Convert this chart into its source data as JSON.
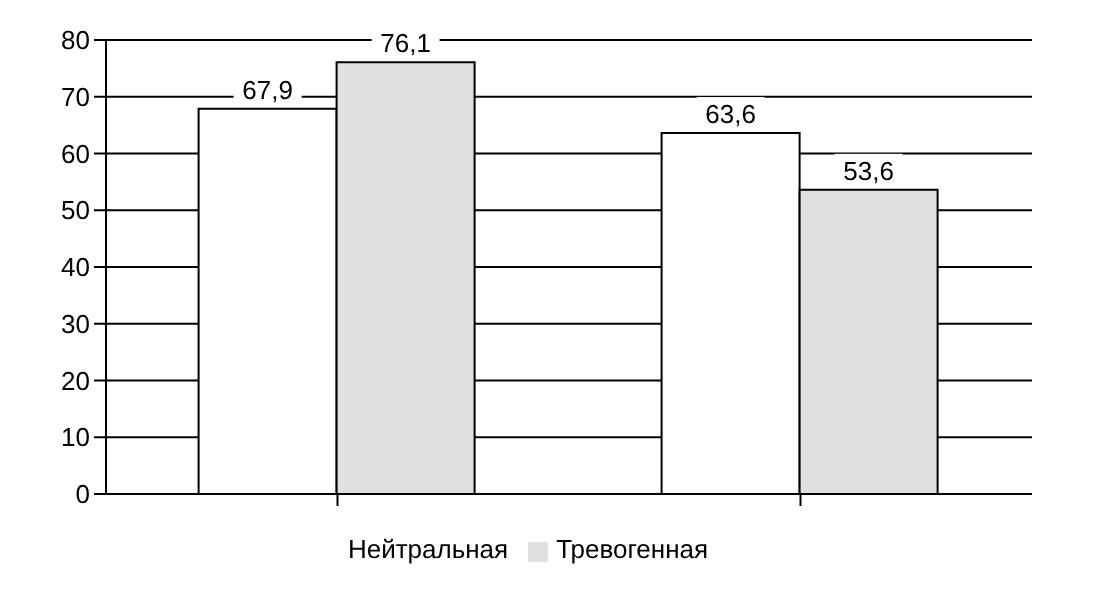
{
  "chart_data": {
    "type": "bar",
    "categories": [
      null,
      null
    ],
    "series": [
      {
        "name": "Нейтральная",
        "color": "#ffffff",
        "values": [
          67.9,
          63.6
        ],
        "value_labels": [
          "67,9",
          "63,6"
        ]
      },
      {
        "name": "Тревогенная",
        "color": "#e0e0e0",
        "values": [
          76.1,
          53.6
        ],
        "value_labels": [
          "76,1",
          "53,6"
        ]
      }
    ],
    "ylim": [
      0,
      80
    ],
    "yticks": [
      0,
      10,
      20,
      30,
      40,
      50,
      60,
      70,
      80
    ],
    "grid": "y",
    "legend": "bottom"
  }
}
